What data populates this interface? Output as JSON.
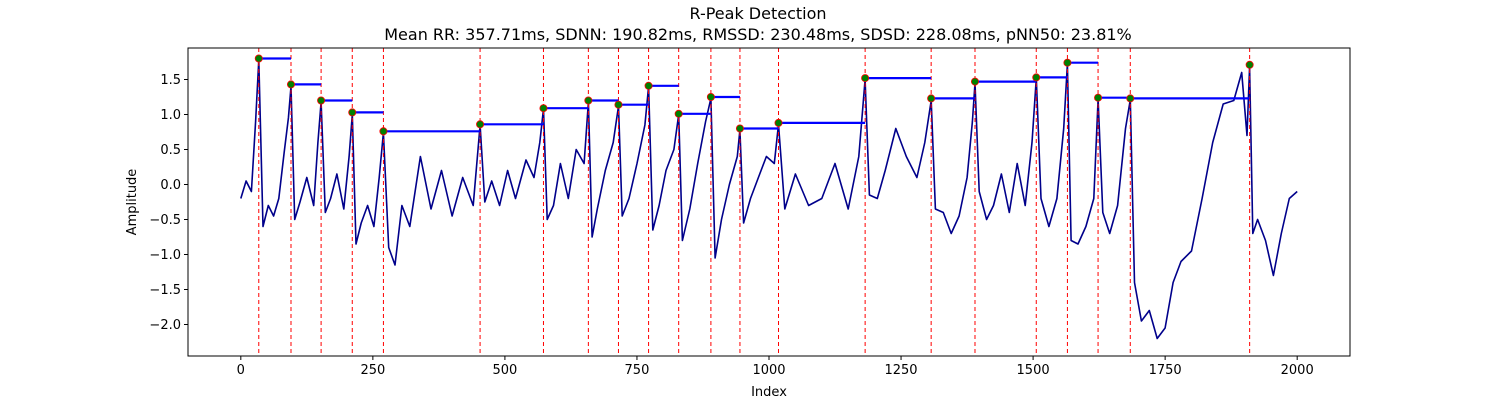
{
  "chart_data": {
    "type": "line",
    "title": "R-Peak Detection",
    "subtitle": "Mean RR: 357.71ms, SDNN: 190.82ms, RMSSD: 230.48ms, SDSD: 228.08ms, pNN50: 23.81%",
    "xlabel": "Index",
    "ylabel": "Amplitude",
    "xlim": [
      -100,
      2100
    ],
    "ylim": [
      -2.45,
      1.95
    ],
    "xticks": [
      0,
      250,
      500,
      750,
      1000,
      1250,
      1500,
      1750,
      2000
    ],
    "yticks": [
      -2.0,
      -1.5,
      -1.0,
      -0.5,
      0.0,
      0.5,
      1.0,
      1.5
    ],
    "grid": false,
    "colors": {
      "signal": "#00008b",
      "peak_line": "#ff0000",
      "rr_segment": "#0000ff",
      "peak_marker_fill": "#008000",
      "peak_marker_edge": "#ff0000"
    },
    "peaks": {
      "x": [
        34,
        95,
        152,
        211,
        270,
        453,
        573,
        658,
        715,
        772,
        829,
        890,
        945,
        1018,
        1182,
        1307,
        1390,
        1506,
        1565,
        1623,
        1684,
        1910
      ],
      "y": [
        1.8,
        1.43,
        1.2,
        1.03,
        0.76,
        0.86,
        1.09,
        1.2,
        1.14,
        1.41,
        1.01,
        1.25,
        0.8,
        0.88,
        1.52,
        1.23,
        1.47,
        1.53,
        1.74,
        1.24,
        1.23,
        1.71
      ]
    },
    "signal": {
      "x": [
        0,
        10,
        20,
        28,
        34,
        42,
        52,
        62,
        72,
        82,
        90,
        95,
        102,
        112,
        125,
        138,
        146,
        152,
        160,
        170,
        182,
        195,
        205,
        211,
        218,
        228,
        240,
        252,
        262,
        270,
        280,
        292,
        305,
        320,
        340,
        360,
        380,
        400,
        420,
        440,
        453,
        462,
        475,
        490,
        505,
        520,
        540,
        555,
        566,
        573,
        580,
        592,
        605,
        620,
        635,
        650,
        658,
        665,
        675,
        690,
        705,
        715,
        722,
        735,
        750,
        765,
        772,
        780,
        792,
        805,
        820,
        829,
        836,
        850,
        865,
        880,
        890,
        898,
        910,
        925,
        940,
        945,
        952,
        965,
        980,
        995,
        1010,
        1018,
        1030,
        1050,
        1075,
        1100,
        1125,
        1150,
        1170,
        1182,
        1190,
        1205,
        1220,
        1240,
        1260,
        1280,
        1295,
        1307,
        1315,
        1330,
        1345,
        1360,
        1375,
        1385,
        1390,
        1398,
        1412,
        1425,
        1440,
        1455,
        1470,
        1485,
        1498,
        1506,
        1515,
        1530,
        1545,
        1558,
        1565,
        1572,
        1585,
        1600,
        1615,
        1623,
        1632,
        1645,
        1660,
        1675,
        1684,
        1692,
        1705,
        1720,
        1735,
        1750,
        1765,
        1780,
        1800,
        1820,
        1840,
        1860,
        1880,
        1895,
        1905,
        1910,
        1916,
        1925,
        1940,
        1955,
        1970,
        1985,
        2000
      ],
      "y": [
        -0.2,
        0.05,
        -0.1,
        0.9,
        1.78,
        -0.6,
        -0.3,
        -0.45,
        -0.2,
        0.45,
        0.95,
        1.4,
        -0.5,
        -0.25,
        0.1,
        -0.3,
        0.6,
        1.18,
        -0.4,
        -0.2,
        0.15,
        -0.35,
        0.4,
        1.0,
        -0.85,
        -0.55,
        -0.3,
        -0.6,
        0.1,
        0.74,
        -0.9,
        -1.15,
        -0.3,
        -0.6,
        0.4,
        -0.35,
        0.2,
        -0.45,
        0.1,
        -0.3,
        0.85,
        -0.25,
        0.05,
        -0.3,
        0.2,
        -0.2,
        0.35,
        0.1,
        0.6,
        1.08,
        -0.5,
        -0.3,
        0.3,
        -0.2,
        0.5,
        0.3,
        1.18,
        -0.75,
        -0.35,
        0.2,
        0.6,
        1.12,
        -0.45,
        -0.2,
        0.3,
        0.85,
        1.4,
        -0.65,
        -0.3,
        0.2,
        0.5,
        1.0,
        -0.8,
        -0.35,
        0.3,
        0.9,
        1.23,
        -1.05,
        -0.5,
        0.0,
        0.4,
        0.78,
        -0.55,
        -0.2,
        0.1,
        0.4,
        0.3,
        0.86,
        -0.35,
        0.15,
        -0.3,
        -0.2,
        0.3,
        -0.35,
        0.4,
        1.5,
        -0.15,
        -0.2,
        0.2,
        0.8,
        0.4,
        0.1,
        0.6,
        1.2,
        -0.35,
        -0.4,
        -0.7,
        -0.45,
        0.1,
        0.9,
        1.45,
        -0.1,
        -0.5,
        -0.3,
        0.15,
        -0.4,
        0.3,
        -0.3,
        0.6,
        1.52,
        -0.2,
        -0.6,
        -0.2,
        0.8,
        1.72,
        -0.8,
        -0.85,
        -0.6,
        -0.2,
        1.22,
        -0.4,
        -0.7,
        -0.3,
        0.8,
        1.21,
        -1.4,
        -1.95,
        -1.8,
        -2.2,
        -2.05,
        -1.4,
        -1.1,
        -0.95,
        -0.2,
        0.6,
        1.15,
        1.2,
        1.6,
        0.7,
        1.68,
        -0.7,
        -0.5,
        -0.8,
        -1.3,
        -0.7,
        -0.2,
        -0.1
      ]
    }
  }
}
